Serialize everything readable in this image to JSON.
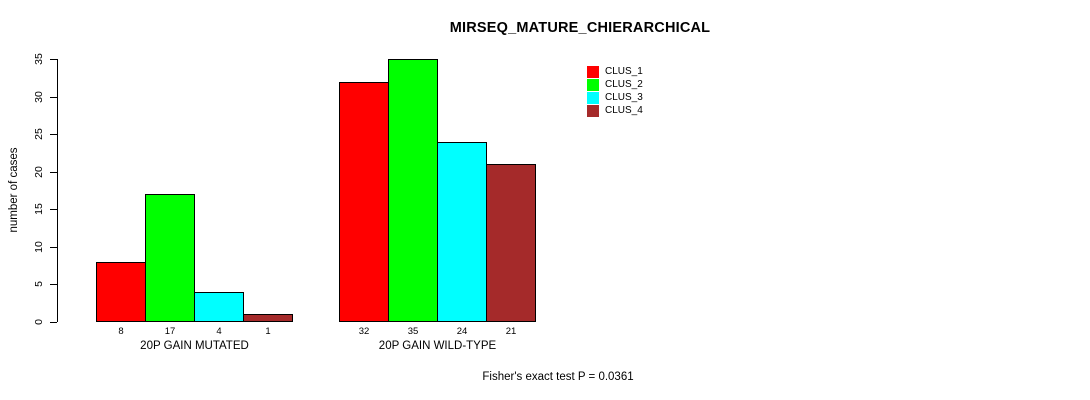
{
  "title": "MIRSEQ_MATURE_CHIERARCHICAL",
  "footer": "Fisher's exact test P = 0.0361",
  "chart_data": {
    "type": "bar",
    "title": "MIRSEQ_MATURE_CHIERARCHICAL",
    "categories": [
      "20P GAIN MUTATED",
      "20P GAIN WILD-TYPE"
    ],
    "series": [
      {
        "name": "CLUS_1",
        "color": "#FF0000",
        "values": [
          8,
          32
        ]
      },
      {
        "name": "CLUS_2",
        "color": "#00FF00",
        "values": [
          17,
          35
        ]
      },
      {
        "name": "CLUS_3",
        "color": "#00FFFF",
        "values": [
          4,
          24
        ]
      },
      {
        "name": "CLUS_4",
        "color": "#A52A2A",
        "values": [
          1,
          21
        ]
      }
    ],
    "xlabel": "",
    "ylabel": "number of cases",
    "ylim": [
      0,
      35
    ],
    "yticks": [
      0,
      5,
      10,
      15,
      20,
      25,
      30,
      35
    ],
    "grid": false,
    "legend_position": "top-right",
    "bar_value_labels_shown": true,
    "annotations": [
      "Fisher's exact test P = 0.0361"
    ],
    "axis_color": "#000000",
    "bar_border_color": "#000000"
  }
}
